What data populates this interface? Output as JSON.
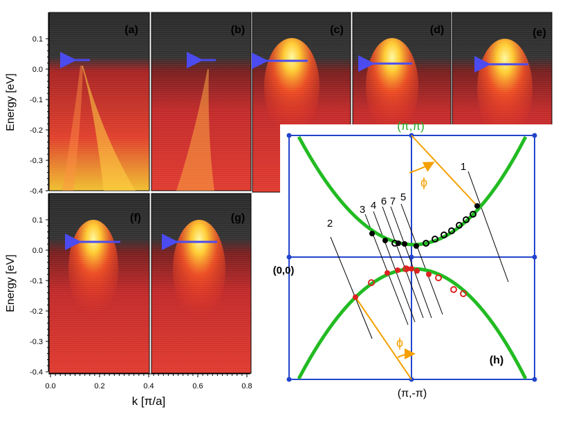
{
  "y_axis": {
    "label": "Energy [eV]",
    "ticks_top": [
      "0.1",
      "0.0",
      "-0.1",
      "-0.2",
      "-0.3",
      "-0.4"
    ],
    "ticks_bottom": [
      "0.1",
      "0.0",
      "-0.1",
      "-0.2",
      "-0.3",
      "-0.4"
    ]
  },
  "x_axis": {
    "label": "k [π/a]",
    "ticks": [
      "0.0",
      "0.2",
      "0.4",
      "0.6",
      "0.8"
    ]
  },
  "panels": [
    {
      "label": "(a)"
    },
    {
      "label": "(b)"
    },
    {
      "label": "(c)"
    },
    {
      "label": "(d)"
    },
    {
      "label": "(e)"
    },
    {
      "label": "(f)"
    },
    {
      "label": "(g)"
    }
  ],
  "bz": {
    "panel_label": "(h)",
    "point_top": "(π,π)",
    "point_left": "(0,0)",
    "point_bottom": "(π,-π)",
    "angle_symbol": "ϕ",
    "cut_labels": [
      "1",
      "2",
      "3",
      "4",
      "6",
      "7",
      "5"
    ],
    "colors": {
      "fs": "#22bb22",
      "frame": "#2244cc",
      "angle": "#f5a000",
      "cut": "#000000",
      "red": "#dd2222"
    }
  }
}
